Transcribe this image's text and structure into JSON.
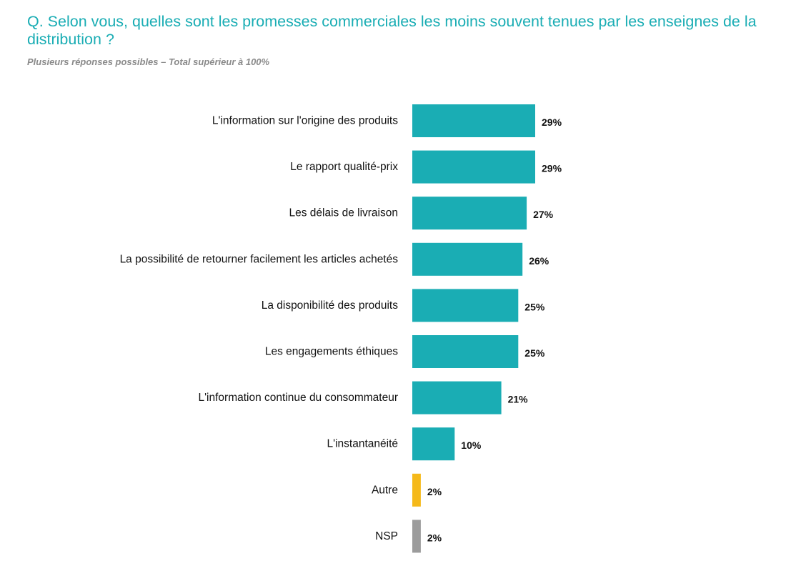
{
  "title": "Q. Selon vous, quelles sont les promesses commerciales les moins souvent tenues par les enseignes de la distribution ?",
  "subtitle": "Plusieurs réponses possibles – Total supérieur à 100%",
  "colors": {
    "main": "#1aadb4",
    "other": "#f5b91a",
    "nsp": "#9c9c9c"
  },
  "chart_data": {
    "type": "bar",
    "orientation": "horizontal",
    "unit": "%",
    "categories": [
      "L'information sur l'origine des produits",
      "Le rapport qualité-prix",
      "Les délais de livraison",
      "La possibilité de retourner facilement les articles achetés",
      "La disponibilité des produits",
      "Les engagements éthiques",
      "L'information continue du consommateur",
      "L'instantanéité",
      "Autre",
      "NSP"
    ],
    "values": [
      29,
      29,
      27,
      26,
      25,
      25,
      21,
      10,
      2,
      2
    ],
    "value_labels": [
      "29%",
      "29%",
      "27%",
      "26%",
      "25%",
      "25%",
      "21%",
      "10%",
      "2%",
      "2%"
    ],
    "bar_colors": [
      "main",
      "main",
      "main",
      "main",
      "main",
      "main",
      "main",
      "main",
      "other",
      "nsp"
    ],
    "xlim": [
      0,
      29
    ],
    "grid": false,
    "legend": "none"
  }
}
